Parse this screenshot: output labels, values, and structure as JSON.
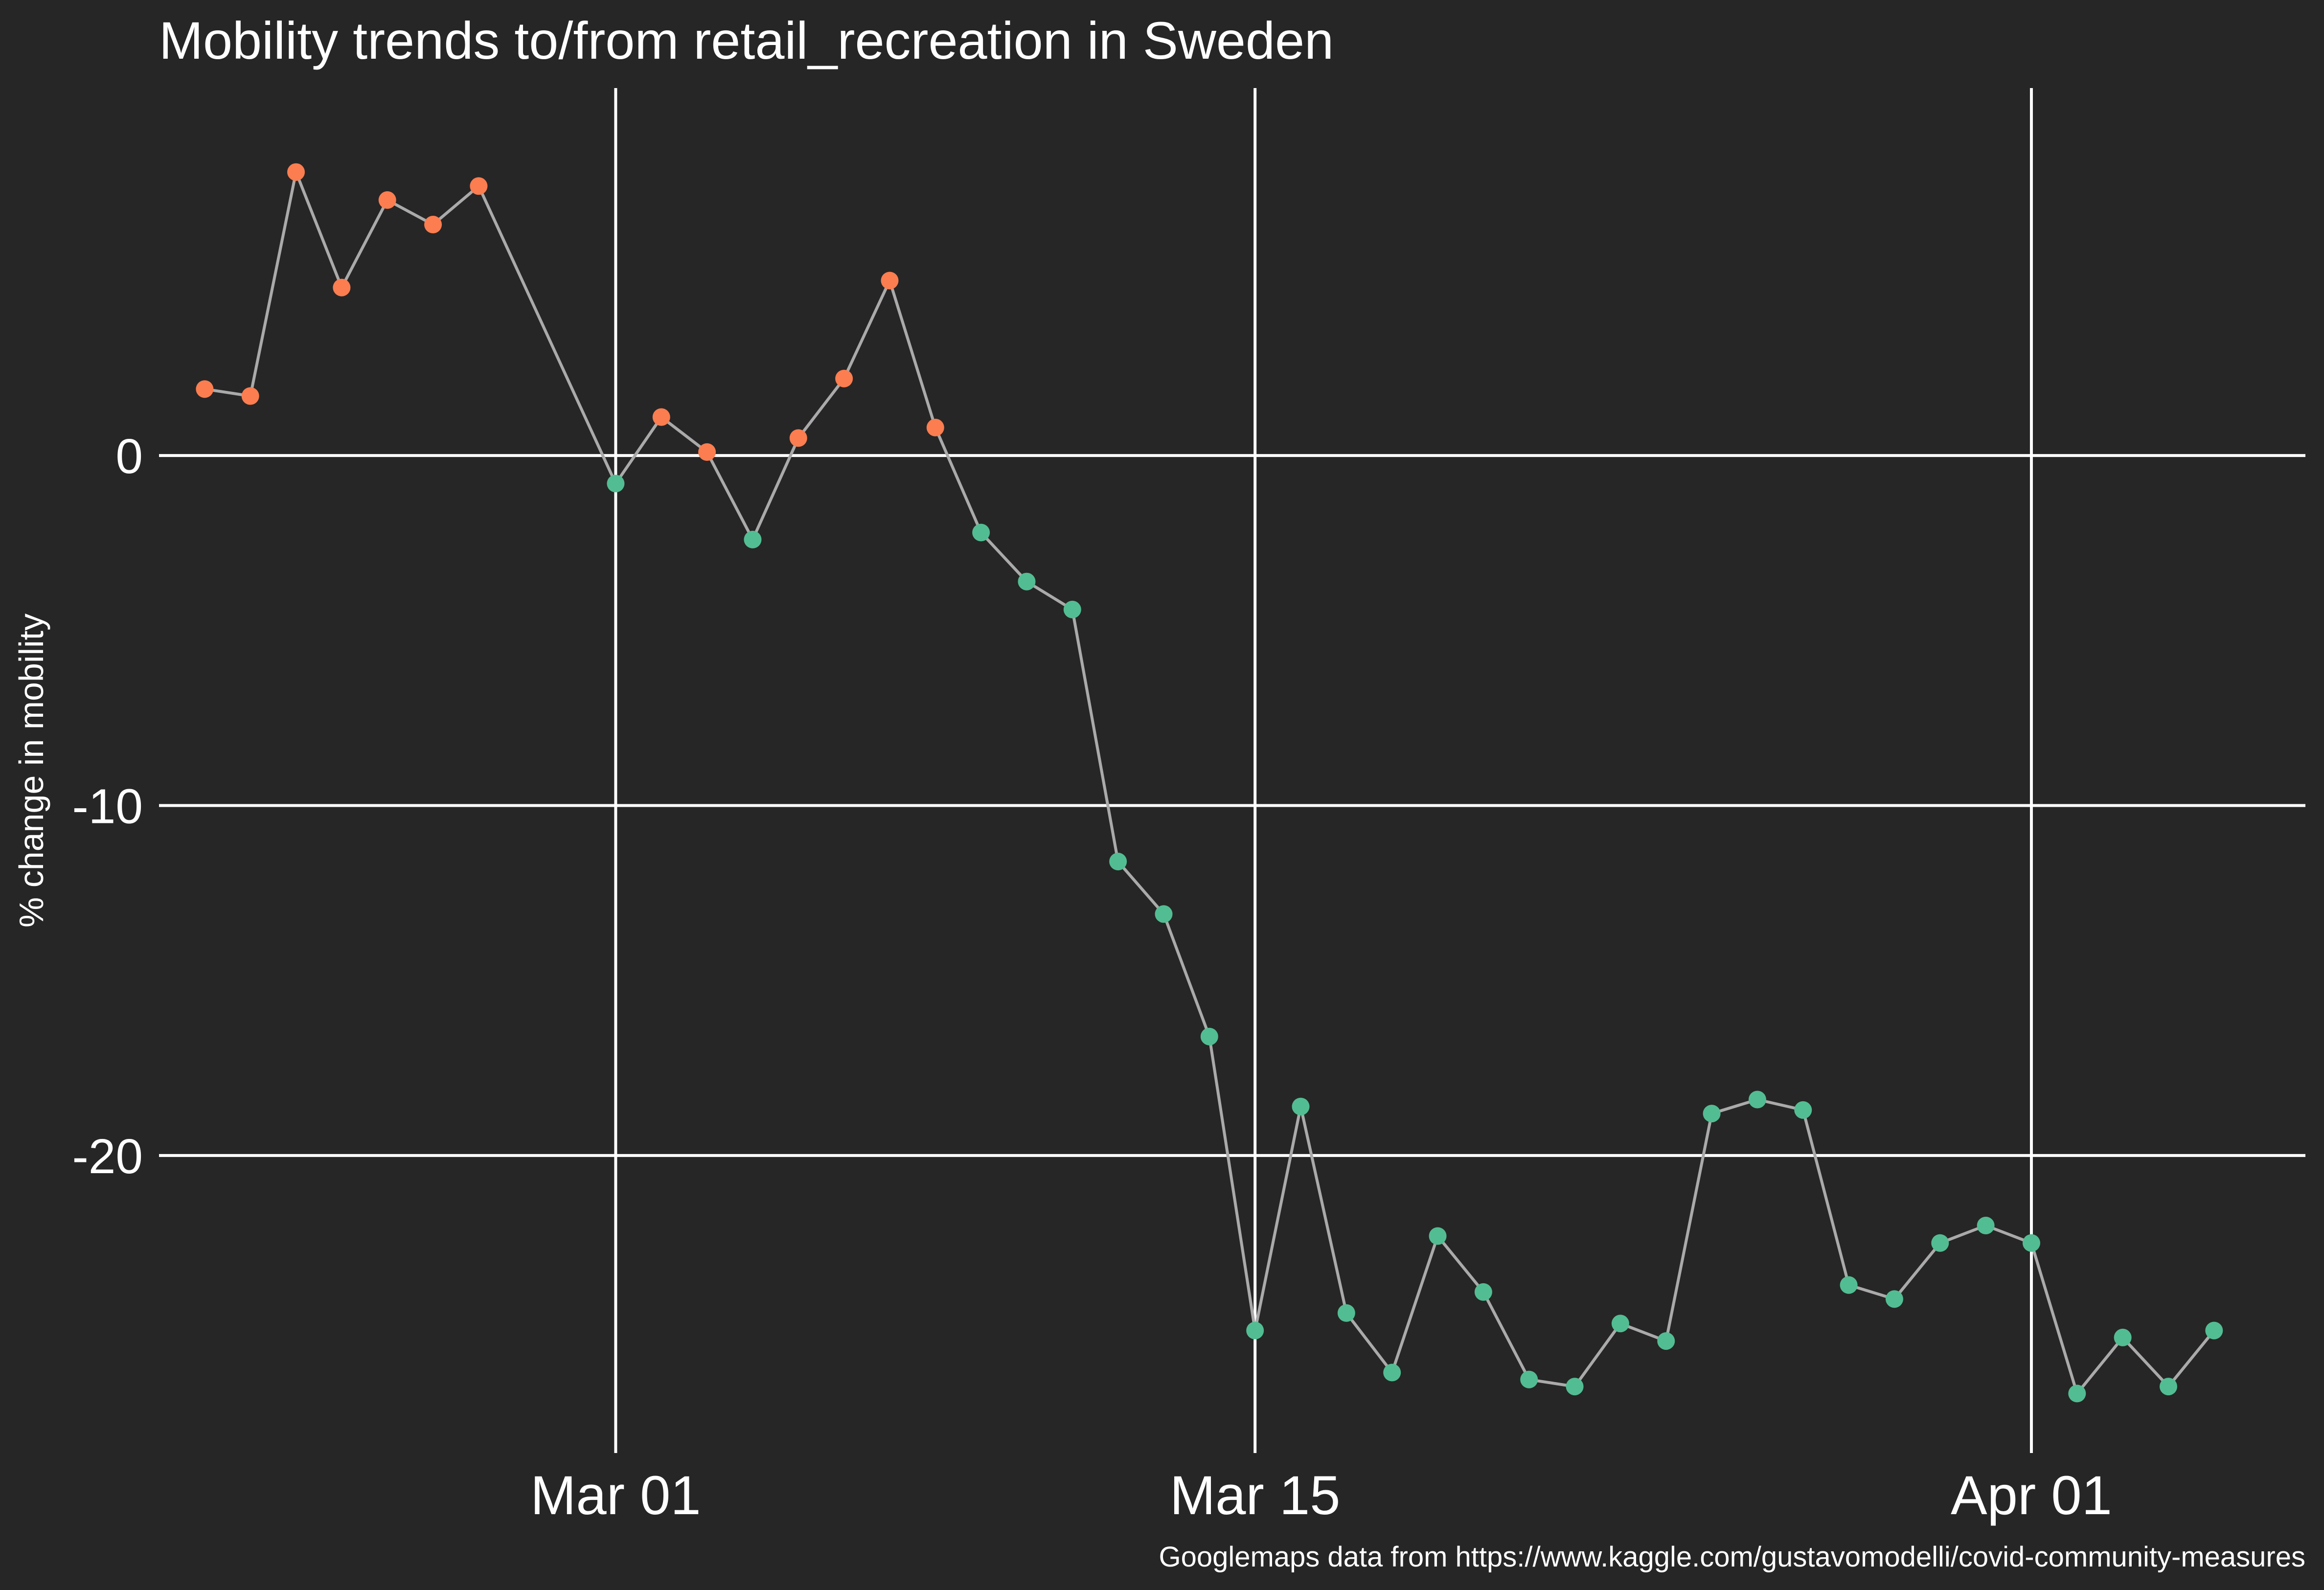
{
  "chart_data": {
    "type": "line",
    "title": "Mobility trends to/from retail_recreation in Sweden",
    "ylabel": "% change in mobility",
    "xlabel": "",
    "caption": "Googlemaps data from https://www.kaggle.com/gustavomodelli/covid-community-measures",
    "x_axis": {
      "type": "date",
      "ticks": [
        {
          "value": "2020-03-01",
          "label": "Mar 01"
        },
        {
          "value": "2020-03-15",
          "label": "Mar 15"
        },
        {
          "value": "2020-04-01",
          "label": "Apr 01"
        }
      ]
    },
    "y_axis": {
      "ticks": [
        {
          "value": 0,
          "label": "0"
        },
        {
          "value": -10,
          "label": "-10"
        },
        {
          "value": -20,
          "label": "-20"
        }
      ]
    },
    "ylim": [
      -28.5,
      10.5
    ],
    "xlim": [
      "2020-02-20",
      "2020-04-07"
    ],
    "grid": true,
    "line_color": "#aaaaaa",
    "colors": {
      "positive": "#fc7d4f",
      "negative": "#52bd92"
    },
    "points": [
      {
        "date": "2020-02-21",
        "value": 1.9
      },
      {
        "date": "2020-02-22",
        "value": 1.7
      },
      {
        "date": "2020-02-23",
        "value": 8.1
      },
      {
        "date": "2020-02-24",
        "value": 4.8
      },
      {
        "date": "2020-02-25",
        "value": 7.3
      },
      {
        "date": "2020-02-26",
        "value": 6.6
      },
      {
        "date": "2020-02-27",
        "value": 7.7
      },
      {
        "date": "2020-03-01",
        "value": -0.8
      },
      {
        "date": "2020-03-02",
        "value": 1.1
      },
      {
        "date": "2020-03-03",
        "value": 0.1
      },
      {
        "date": "2020-03-04",
        "value": -2.4
      },
      {
        "date": "2020-03-05",
        "value": 0.5
      },
      {
        "date": "2020-03-06",
        "value": 2.2
      },
      {
        "date": "2020-03-07",
        "value": 5.0
      },
      {
        "date": "2020-03-08",
        "value": 0.8
      },
      {
        "date": "2020-03-09",
        "value": -2.2
      },
      {
        "date": "2020-03-10",
        "value": -3.6
      },
      {
        "date": "2020-03-11",
        "value": -4.4
      },
      {
        "date": "2020-03-12",
        "value": -11.6
      },
      {
        "date": "2020-03-13",
        "value": -13.1
      },
      {
        "date": "2020-03-14",
        "value": -16.6
      },
      {
        "date": "2020-03-15",
        "value": -25.0
      },
      {
        "date": "2020-03-16",
        "value": -18.6
      },
      {
        "date": "2020-03-17",
        "value": -24.5
      },
      {
        "date": "2020-03-18",
        "value": -26.2
      },
      {
        "date": "2020-03-19",
        "value": -22.3
      },
      {
        "date": "2020-03-20",
        "value": -23.9
      },
      {
        "date": "2020-03-21",
        "value": -26.4
      },
      {
        "date": "2020-03-22",
        "value": -26.6
      },
      {
        "date": "2020-03-23",
        "value": -24.8
      },
      {
        "date": "2020-03-24",
        "value": -25.3
      },
      {
        "date": "2020-03-25",
        "value": -18.8
      },
      {
        "date": "2020-03-26",
        "value": -18.4
      },
      {
        "date": "2020-03-27",
        "value": -18.7
      },
      {
        "date": "2020-03-28",
        "value": -23.7
      },
      {
        "date": "2020-03-29",
        "value": -24.1
      },
      {
        "date": "2020-03-30",
        "value": -22.5
      },
      {
        "date": "2020-03-31",
        "value": -22.0
      },
      {
        "date": "2020-04-01",
        "value": -22.5
      },
      {
        "date": "2020-04-02",
        "value": -26.8
      },
      {
        "date": "2020-04-03",
        "value": -25.2
      },
      {
        "date": "2020-04-04",
        "value": -26.6
      },
      {
        "date": "2020-04-05",
        "value": -25.0
      }
    ]
  }
}
